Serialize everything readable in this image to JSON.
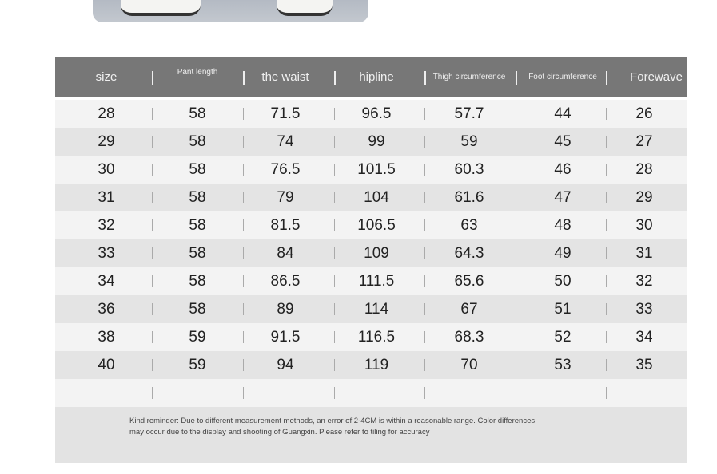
{
  "headers": [
    "size",
    "Pant length",
    "the waist",
    "hipline",
    "Thigh circumference",
    "Foot circumference",
    "Forewave"
  ],
  "rows": [
    [
      "28",
      "58",
      "71.5",
      "96.5",
      "57.7",
      "44",
      "26"
    ],
    [
      "29",
      "58",
      "74",
      "99",
      "59",
      "45",
      "27"
    ],
    [
      "30",
      "58",
      "76.5",
      "101.5",
      "60.3",
      "46",
      "28"
    ],
    [
      "31",
      "58",
      "79",
      "104",
      "61.6",
      "47",
      "29"
    ],
    [
      "32",
      "58",
      "81.5",
      "106.5",
      "63",
      "48",
      "30"
    ],
    [
      "33",
      "58",
      "84",
      "109",
      "64.3",
      "49",
      "31"
    ],
    [
      "34",
      "58",
      "86.5",
      "111.5",
      "65.6",
      "50",
      "32"
    ],
    [
      "36",
      "58",
      "89",
      "114",
      "67",
      "51",
      "33"
    ],
    [
      "38",
      "59",
      "91.5",
      "116.5",
      "68.3",
      "52",
      "34"
    ],
    [
      "40",
      "59",
      "94",
      "119",
      "70",
      "53",
      "35"
    ],
    [
      "",
      "",
      "",
      "",
      "",
      "",
      ""
    ]
  ],
  "note": "Kind reminder: Due to different measurement methods, an error of 2-4CM is within a reasonable range. Color differences may occur due to the display and shooting of Guangxin. Please refer to tiling for accuracy"
}
